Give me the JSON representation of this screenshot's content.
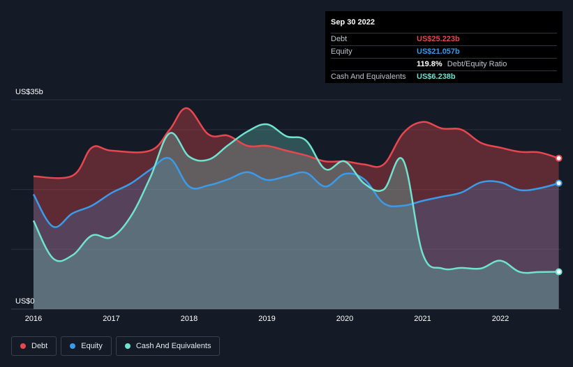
{
  "tooltip": {
    "date": "Sep 30 2022",
    "rows": [
      {
        "label": "Debt",
        "value": "US$25.223b",
        "color": "#e8474f"
      },
      {
        "label": "Equity",
        "value": "US$21.057b",
        "color": "#3b9be8"
      },
      {
        "label": "",
        "value": "119.8%",
        "suffix": "Debt/Equity Ratio",
        "color": "#ffffff"
      },
      {
        "label": "Cash And Equivalents",
        "value": "US$6.238b",
        "color": "#6fe3cf"
      }
    ]
  },
  "legend": [
    {
      "label": "Debt",
      "color": "#e8474f"
    },
    {
      "label": "Equity",
      "color": "#3b9be8"
    },
    {
      "label": "Cash And Equivalents",
      "color": "#6fe3cf"
    }
  ],
  "chart_data": {
    "type": "area",
    "y_top_label": "US$35b",
    "y_bottom_label": "US$0",
    "ylim": [
      0,
      35
    ],
    "xlim": [
      2016.0,
      2022.78
    ],
    "x_ticks": [
      {
        "value": 2016,
        "label": "2016"
      },
      {
        "value": 2017,
        "label": "2017"
      },
      {
        "value": 2018,
        "label": "2018"
      },
      {
        "value": 2019,
        "label": "2019"
      },
      {
        "value": 2020,
        "label": "2020"
      },
      {
        "value": 2021,
        "label": "2021"
      },
      {
        "value": 2022,
        "label": "2022"
      }
    ],
    "grid": true,
    "series": [
      {
        "name": "Debt",
        "color": "#e8474f",
        "x": [
          2016.0,
          2016.5,
          2016.75,
          2017.0,
          2017.5,
          2017.75,
          2017.97,
          2018.25,
          2018.5,
          2018.75,
          2019.0,
          2019.25,
          2019.5,
          2019.75,
          2020.0,
          2020.25,
          2020.5,
          2020.75,
          2021.0,
          2021.25,
          2021.5,
          2021.75,
          2022.0,
          2022.25,
          2022.5,
          2022.75
        ],
        "values": [
          22.2,
          22.3,
          27.0,
          26.5,
          26.5,
          30.0,
          33.6,
          29.2,
          29.0,
          27.3,
          27.3,
          26.5,
          25.7,
          24.7,
          24.7,
          24.2,
          24.2,
          29.4,
          31.3,
          30.2,
          30.0,
          27.8,
          27.0,
          26.3,
          26.2,
          25.223
        ]
      },
      {
        "name": "Equity",
        "color": "#3b9be8",
        "x": [
          2016.0,
          2016.25,
          2016.5,
          2016.75,
          2017.0,
          2017.25,
          2017.5,
          2017.75,
          2018.0,
          2018.25,
          2018.5,
          2018.75,
          2019.0,
          2019.25,
          2019.5,
          2019.75,
          2020.0,
          2020.25,
          2020.5,
          2020.75,
          2021.0,
          2021.25,
          2021.5,
          2021.75,
          2022.0,
          2022.25,
          2022.5,
          2022.75
        ],
        "values": [
          19.2,
          13.8,
          16.0,
          17.3,
          19.4,
          21.0,
          23.3,
          25.2,
          20.5,
          20.7,
          21.7,
          22.9,
          21.6,
          22.2,
          22.8,
          20.5,
          22.6,
          21.7,
          17.7,
          17.3,
          18.1,
          18.8,
          19.5,
          21.2,
          21.2,
          19.9,
          20.2,
          21.057
        ]
      },
      {
        "name": "Cash And Equivalents",
        "color": "#6fe3cf",
        "x": [
          2016.0,
          2016.25,
          2016.5,
          2016.75,
          2017.0,
          2017.25,
          2017.5,
          2017.75,
          2018.0,
          2018.25,
          2018.5,
          2018.75,
          2019.0,
          2019.25,
          2019.5,
          2019.75,
          2020.0,
          2020.25,
          2020.5,
          2020.75,
          2021.0,
          2021.25,
          2021.5,
          2021.75,
          2022.0,
          2022.25,
          2022.5,
          2022.75
        ],
        "values": [
          14.8,
          8.5,
          9.0,
          12.3,
          12.0,
          15.5,
          22.0,
          29.4,
          25.5,
          25.0,
          27.4,
          29.7,
          30.9,
          28.9,
          28.2,
          23.4,
          24.7,
          21.0,
          20.0,
          24.9,
          9.3,
          6.8,
          6.9,
          6.8,
          8.1,
          6.2,
          6.2,
          6.238
        ]
      }
    ]
  }
}
